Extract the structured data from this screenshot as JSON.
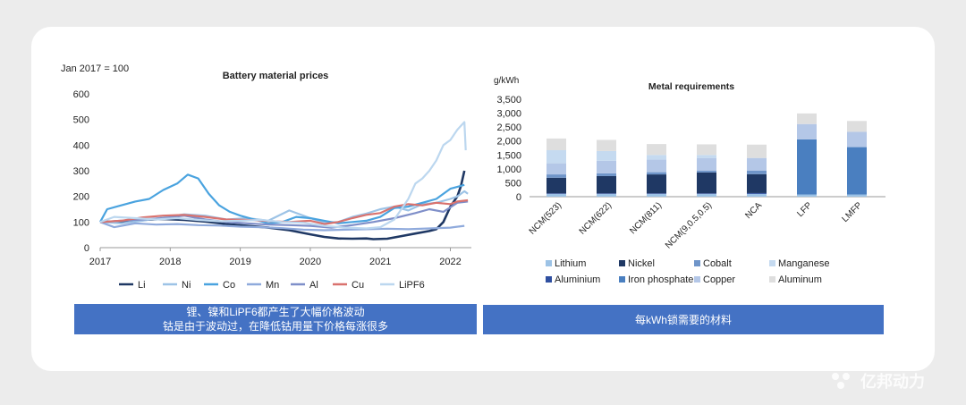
{
  "chart_data": [
    {
      "type": "line",
      "title": "Battery material prices",
      "subtitle": "Jan 2017 = 100",
      "xlabel": "",
      "ylabel": "",
      "x_ticks": [
        "2017",
        "2018",
        "2019",
        "2020",
        "2021",
        "2022"
      ],
      "y_ticks": [
        "0",
        "100",
        "200",
        "300",
        "400",
        "500",
        "600"
      ],
      "xlim": [
        2017,
        2022.3
      ],
      "ylim": [
        0,
        600
      ],
      "grid": false,
      "legend_position": "bottom",
      "series": [
        {
          "name": "Li",
          "color": "#1f3864",
          "width": 2.6,
          "points": [
            [
              2017,
              100
            ],
            [
              2017.3,
              103
            ],
            [
              2017.6,
              108
            ],
            [
              2017.9,
              112
            ],
            [
              2018.2,
              108
            ],
            [
              2018.5,
              102
            ],
            [
              2018.8,
              92
            ],
            [
              2019.1,
              85
            ],
            [
              2019.4,
              78
            ],
            [
              2019.7,
              68
            ],
            [
              2020.0,
              52
            ],
            [
              2020.2,
              42
            ],
            [
              2020.4,
              36
            ],
            [
              2020.6,
              35
            ],
            [
              2020.8,
              36
            ],
            [
              2020.9,
              33
            ],
            [
              2021.1,
              35
            ],
            [
              2021.3,
              45
            ],
            [
              2021.5,
              55
            ],
            [
              2021.7,
              65
            ],
            [
              2021.8,
              72
            ],
            [
              2021.9,
              100
            ],
            [
              2022.0,
              160
            ],
            [
              2022.1,
              200
            ],
            [
              2022.15,
              240
            ],
            [
              2022.2,
              300
            ]
          ]
        },
        {
          "name": "Ni",
          "color": "#9dc3e6",
          "width": 2.2,
          "points": [
            [
              2017,
              100
            ],
            [
              2017.3,
              95
            ],
            [
              2017.6,
              105
            ],
            [
              2017.9,
              118
            ],
            [
              2018.2,
              130
            ],
            [
              2018.5,
              125
            ],
            [
              2018.8,
              110
            ],
            [
              2019.1,
              115
            ],
            [
              2019.4,
              105
            ],
            [
              2019.7,
              145
            ],
            [
              2020.0,
              115
            ],
            [
              2020.2,
              98
            ],
            [
              2020.4,
              100
            ],
            [
              2020.6,
              120
            ],
            [
              2020.8,
              133
            ],
            [
              2021.0,
              150
            ],
            [
              2021.2,
              160
            ],
            [
              2021.4,
              145
            ],
            [
              2021.6,
              170
            ],
            [
              2021.8,
              175
            ],
            [
              2022.0,
              190
            ],
            [
              2022.1,
              200
            ],
            [
              2022.2,
              220
            ],
            [
              2022.25,
              210
            ]
          ]
        },
        {
          "name": "Co",
          "color": "#4aa3df",
          "width": 2.2,
          "points": [
            [
              2017,
              100
            ],
            [
              2017.1,
              150
            ],
            [
              2017.3,
              165
            ],
            [
              2017.5,
              180
            ],
            [
              2017.7,
              190
            ],
            [
              2017.9,
              225
            ],
            [
              2018.1,
              250
            ],
            [
              2018.25,
              285
            ],
            [
              2018.4,
              270
            ],
            [
              2018.55,
              210
            ],
            [
              2018.7,
              165
            ],
            [
              2018.85,
              140
            ],
            [
              2019.0,
              125
            ],
            [
              2019.2,
              110
            ],
            [
              2019.4,
              95
            ],
            [
              2019.6,
              100
            ],
            [
              2019.8,
              120
            ],
            [
              2020.0,
              115
            ],
            [
              2020.2,
              105
            ],
            [
              2020.4,
              95
            ],
            [
              2020.6,
              100
            ],
            [
              2020.8,
              105
            ],
            [
              2021.0,
              120
            ],
            [
              2021.2,
              155
            ],
            [
              2021.4,
              160
            ],
            [
              2021.6,
              175
            ],
            [
              2021.8,
              190
            ],
            [
              2022.0,
              230
            ],
            [
              2022.2,
              245
            ]
          ]
        },
        {
          "name": "Mn",
          "color": "#8faadc",
          "width": 2.2,
          "points": [
            [
              2017,
              100
            ],
            [
              2017.2,
              80
            ],
            [
              2017.5,
              95
            ],
            [
              2017.8,
              90
            ],
            [
              2018.1,
              92
            ],
            [
              2018.4,
              88
            ],
            [
              2018.7,
              86
            ],
            [
              2019.0,
              82
            ],
            [
              2019.3,
              80
            ],
            [
              2019.6,
              76
            ],
            [
              2019.9,
              70
            ],
            [
              2020.2,
              68
            ],
            [
              2020.5,
              70
            ],
            [
              2020.8,
              72
            ],
            [
              2021.1,
              74
            ],
            [
              2021.4,
              72
            ],
            [
              2021.7,
              75
            ],
            [
              2022.0,
              78
            ],
            [
              2022.2,
              85
            ]
          ]
        },
        {
          "name": "Al",
          "color": "#7f8fc9",
          "width": 2.2,
          "points": [
            [
              2017,
              100
            ],
            [
              2017.3,
              105
            ],
            [
              2017.6,
              110
            ],
            [
              2017.9,
              115
            ],
            [
              2018.2,
              125
            ],
            [
              2018.5,
              110
            ],
            [
              2018.8,
              100
            ],
            [
              2019.1,
              95
            ],
            [
              2019.4,
              90
            ],
            [
              2019.7,
              88
            ],
            [
              2020.0,
              85
            ],
            [
              2020.3,
              78
            ],
            [
              2020.6,
              88
            ],
            [
              2020.9,
              100
            ],
            [
              2021.2,
              115
            ],
            [
              2021.5,
              135
            ],
            [
              2021.7,
              150
            ],
            [
              2021.9,
              140
            ],
            [
              2022.1,
              175
            ],
            [
              2022.25,
              180
            ]
          ]
        },
        {
          "name": "Cu",
          "color": "#d9726e",
          "width": 2.2,
          "points": [
            [
              2017,
              100
            ],
            [
              2017.3,
              105
            ],
            [
              2017.6,
              118
            ],
            [
              2017.9,
              125
            ],
            [
              2018.2,
              128
            ],
            [
              2018.5,
              120
            ],
            [
              2018.8,
              110
            ],
            [
              2019.1,
              108
            ],
            [
              2019.4,
              104
            ],
            [
              2019.7,
              100
            ],
            [
              2020.0,
              105
            ],
            [
              2020.2,
              92
            ],
            [
              2020.4,
              100
            ],
            [
              2020.6,
              115
            ],
            [
              2020.8,
              128
            ],
            [
              2021.0,
              135
            ],
            [
              2021.2,
              160
            ],
            [
              2021.4,
              170
            ],
            [
              2021.6,
              165
            ],
            [
              2021.8,
              175
            ],
            [
              2022.0,
              170
            ],
            [
              2022.1,
              180
            ],
            [
              2022.25,
              185
            ]
          ]
        },
        {
          "name": "LiPF6",
          "color": "#bcd7ef",
          "width": 2.2,
          "points": [
            [
              2017,
              100
            ],
            [
              2017.2,
              120
            ],
            [
              2017.5,
              115
            ],
            [
              2017.8,
              110
            ],
            [
              2018.1,
              115
            ],
            [
              2018.4,
              108
            ],
            [
              2018.7,
              103
            ],
            [
              2019.0,
              105
            ],
            [
              2019.3,
              108
            ],
            [
              2019.6,
              100
            ],
            [
              2019.9,
              97
            ],
            [
              2020.2,
              85
            ],
            [
              2020.5,
              78
            ],
            [
              2020.8,
              75
            ],
            [
              2021.0,
              80
            ],
            [
              2021.2,
              110
            ],
            [
              2021.4,
              190
            ],
            [
              2021.5,
              250
            ],
            [
              2021.6,
              270
            ],
            [
              2021.7,
              300
            ],
            [
              2021.8,
              340
            ],
            [
              2021.9,
              400
            ],
            [
              2022.0,
              420
            ],
            [
              2022.1,
              460
            ],
            [
              2022.2,
              490
            ],
            [
              2022.22,
              380
            ]
          ]
        }
      ]
    },
    {
      "type": "bar",
      "stacked": true,
      "title": "Metal requirements",
      "ylabel": "g/kWh",
      "xlabel": "",
      "categories": [
        "NCM(523)",
        "NCM(622)",
        "NCM(811)",
        "NCM(9,0.5,0.5)",
        "NCA",
        "LFP",
        "LMFP"
      ],
      "y_ticks": [
        "0",
        "500",
        "1,000",
        "1,500",
        "2,000",
        "2,500",
        "3,000",
        "3,500"
      ],
      "ylim": [
        0,
        3500
      ],
      "grid": false,
      "legend_position": "bottom",
      "series": [
        {
          "name": "Lithium",
          "color": "#9dc3e6",
          "values": [
            100,
            100,
            100,
            100,
            100,
            80,
            80
          ]
        },
        {
          "name": "Aluminium",
          "color": "#2f4fa0",
          "values": [
            20,
            20,
            20,
            20,
            30,
            0,
            0
          ]
        },
        {
          "name": "Nickel",
          "color": "#1f3864",
          "values": [
            560,
            620,
            680,
            750,
            680,
            0,
            0
          ]
        },
        {
          "name": "Iron phosphate",
          "color": "#4a7fc0",
          "values": [
            0,
            0,
            0,
            0,
            0,
            1980,
            1700
          ]
        },
        {
          "name": "Cobalt",
          "color": "#6f95c9",
          "values": [
            120,
            100,
            80,
            70,
            130,
            0,
            0
          ]
        },
        {
          "name": "Copper",
          "color": "#b4c7e7",
          "values": [
            400,
            450,
            450,
            450,
            450,
            550,
            550
          ]
        },
        {
          "name": "Manganese",
          "color": "#c5daf0",
          "values": [
            470,
            350,
            170,
            110,
            0,
            0,
            0
          ]
        },
        {
          "name": "Aluminum",
          "color": "#dedede",
          "values": [
            420,
            400,
            390,
            380,
            480,
            380,
            390
          ]
        }
      ],
      "legend_order": [
        "Lithium",
        "Nickel",
        "Cobalt",
        "Manganese",
        "Aluminium",
        "Iron phosphate",
        "Copper",
        "Aluminum"
      ]
    }
  ],
  "captions": {
    "left_line1": "锂、镍和LiPF6都产生了大幅价格波动",
    "left_line2": "钴是由于波动过，在降低钴用量下价格每涨很多",
    "right": "每kWh锁需要的材料"
  },
  "watermark": "亿邦动力"
}
